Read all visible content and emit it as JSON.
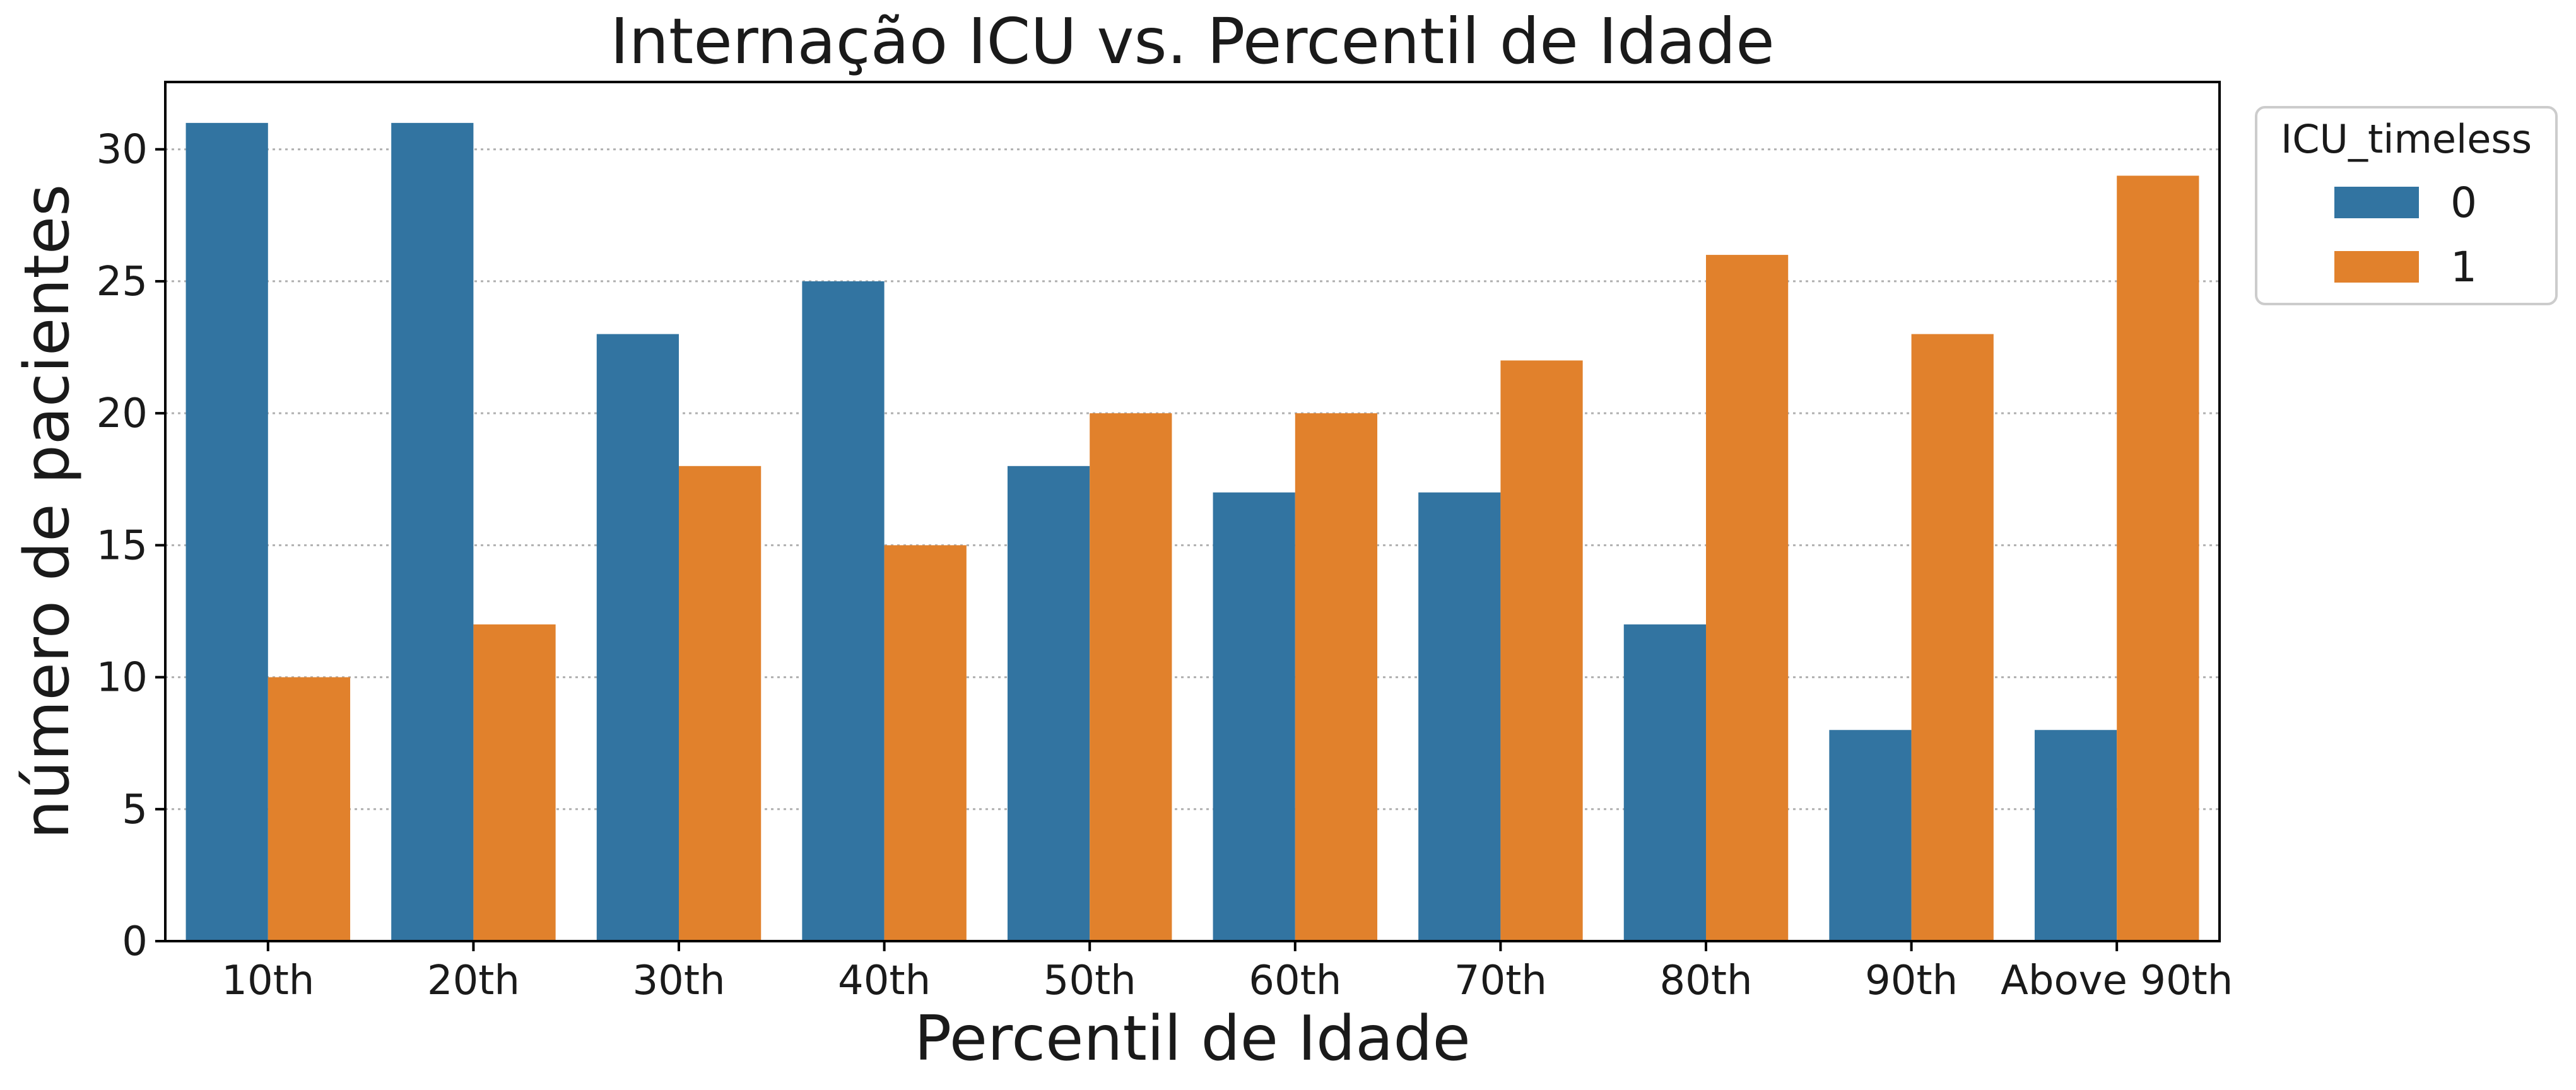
{
  "chart_data": {
    "type": "bar",
    "title": "Internação ICU vs. Percentil de Idade",
    "xlabel": "Percentil de Idade",
    "ylabel": "número de pacientes",
    "categories": [
      "10th",
      "20th",
      "30th",
      "40th",
      "50th",
      "60th",
      "70th",
      "80th",
      "90th",
      "Above 90th"
    ],
    "series": [
      {
        "name": "0",
        "color": "#3274a1",
        "values": [
          31,
          31,
          23,
          25,
          18,
          17,
          17,
          12,
          8,
          8
        ]
      },
      {
        "name": "1",
        "color": "#e1812c",
        "values": [
          10,
          12,
          18,
          15,
          20,
          20,
          22,
          26,
          23,
          29
        ]
      }
    ],
    "ylim": [
      0,
      32.55
    ],
    "yticks": [
      0,
      5,
      10,
      15,
      20,
      25,
      30
    ],
    "grid": "y-dotted",
    "legend": {
      "title": "ICU_timeless",
      "placement": "outside-top-right"
    }
  }
}
